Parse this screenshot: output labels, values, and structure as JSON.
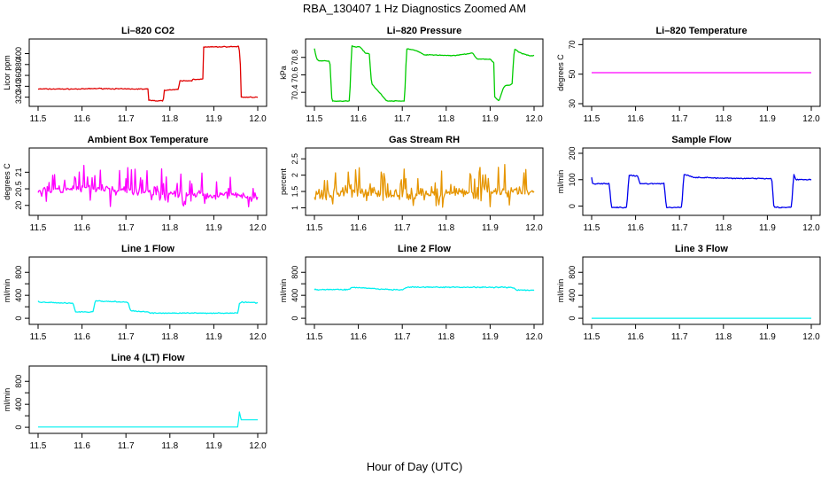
{
  "figure": {
    "title": "RBA_130407  1 Hz Diagnostics Zoomed AM",
    "xlabel": "Hour of Day (UTC)"
  },
  "colors": {
    "red": "#e00000",
    "green": "#00cc00",
    "magenta": "#ff00ff",
    "orange": "#e69500",
    "blue": "#0000ee",
    "cyan": "#00f0f0",
    "axis": "#000000"
  },
  "chart_data": [
    {
      "type": "line",
      "title": "Li–820 CO2",
      "ylabel": "Licor ppm",
      "xlim": [
        11.5,
        12.0
      ],
      "ylim": [
        308,
        422
      ],
      "xticks": [
        "11.5",
        "11.6",
        "11.7",
        "11.8",
        "11.9",
        "12.0"
      ],
      "yticks": [
        320,
        340,
        360,
        380,
        400
      ],
      "color": "red",
      "noise": 1.2,
      "series": [
        {
          "name": "CO2",
          "x": [
            11.5,
            11.6,
            11.635,
            11.7,
            11.75,
            11.752,
            11.785,
            11.787,
            11.82,
            11.822,
            11.85,
            11.852,
            11.875,
            11.877,
            11.955,
            11.957,
            11.96,
            11.962,
            11.99,
            12.0
          ],
          "y": [
            335,
            335,
            336,
            335,
            335,
            314,
            313,
            333,
            334,
            350,
            350,
            353,
            353,
            412,
            413,
            413,
            395,
            320,
            320,
            320
          ]
        }
      ]
    },
    {
      "type": "line",
      "title": "Li–820 Pressure",
      "ylabel": "kPa",
      "xlim": [
        11.5,
        12.0
      ],
      "ylim": [
        70.27,
        70.98
      ],
      "xticks": [
        "11.5",
        "11.6",
        "11.7",
        "11.8",
        "11.9",
        "12.0"
      ],
      "yticks": [
        70.4,
        70.6,
        70.8
      ],
      "color": "green",
      "noise": 0.006,
      "series": [
        {
          "name": "Pressure",
          "x": [
            11.5,
            11.505,
            11.51,
            11.535,
            11.54,
            11.58,
            11.585,
            11.595,
            11.605,
            11.615,
            11.625,
            11.63,
            11.665,
            11.675,
            11.705,
            11.71,
            11.73,
            11.75,
            11.82,
            11.86,
            11.87,
            11.9,
            11.91,
            11.91,
            11.92,
            11.93,
            11.935,
            11.945,
            11.95,
            11.955,
            11.965,
            11.97,
            11.99,
            12.0
          ],
          "y": [
            70.9,
            70.78,
            70.76,
            70.76,
            70.3,
            70.3,
            70.93,
            70.92,
            70.92,
            70.85,
            70.84,
            70.5,
            70.3,
            70.3,
            70.3,
            70.9,
            70.88,
            70.83,
            70.82,
            70.85,
            70.78,
            70.78,
            70.73,
            70.35,
            70.3,
            70.45,
            70.48,
            70.48,
            70.5,
            70.9,
            70.86,
            70.85,
            70.82,
            70.82
          ]
        }
      ]
    },
    {
      "type": "line",
      "title": "Li–820 Temperature",
      "ylabel": "degrees C",
      "xlim": [
        11.5,
        12.0
      ],
      "ylim": [
        30,
        72
      ],
      "xticks": [
        "11.5",
        "11.6",
        "11.7",
        "11.8",
        "11.9",
        "12.0"
      ],
      "yticks": [
        30,
        50,
        70
      ],
      "color": "magenta",
      "noise": 0,
      "series": [
        {
          "name": "Temperature",
          "x": [
            11.5,
            12.0
          ],
          "y": [
            51,
            51
          ]
        }
      ]
    },
    {
      "type": "line",
      "title": "Ambient Box Temperature",
      "ylabel": "degrees C",
      "xlim": [
        11.5,
        12.0
      ],
      "ylim": [
        19.78,
        21.65
      ],
      "xticks": [
        "11.5",
        "11.6",
        "11.7",
        "11.8",
        "11.9",
        "12.0"
      ],
      "yticks": [
        20.0,
        20.5,
        21.0
      ],
      "color": "magenta",
      "noise": 0.18,
      "spikes": 0.55,
      "series": [
        {
          "name": "Box Temperature",
          "x": [
            11.5,
            11.6,
            11.7,
            11.8,
            11.9,
            12.0
          ],
          "y": [
            20.45,
            20.5,
            20.45,
            20.35,
            20.3,
            20.25
          ]
        }
      ]
    },
    {
      "type": "line",
      "title": "Gas Stream RH",
      "ylabel": "percent",
      "xlim": [
        11.5,
        12.0
      ],
      "ylim": [
        0.85,
        2.75
      ],
      "xticks": [
        "11.5",
        "11.6",
        "11.7",
        "11.8",
        "11.9",
        "12.0"
      ],
      "yticks": [
        1.0,
        1.5,
        2.0,
        2.5
      ],
      "color": "orange",
      "noise": 0.25,
      "spikes": 0.6,
      "series": [
        {
          "name": "RH",
          "x": [
            11.5,
            11.6,
            11.7,
            11.8,
            11.9,
            12.0
          ],
          "y": [
            1.4,
            1.5,
            1.4,
            1.45,
            1.5,
            1.5
          ]
        }
      ]
    },
    {
      "type": "line",
      "title": "Sample Flow",
      "ylabel": "ml/min",
      "xlim": [
        11.5,
        12.0
      ],
      "ylim": [
        -25,
        210
      ],
      "xticks": [
        "11.5",
        "11.6",
        "11.7",
        "11.8",
        "11.9",
        "12.0"
      ],
      "yticks": [
        0,
        100,
        200
      ],
      "color": "blue",
      "noise": 3.5,
      "series": [
        {
          "name": "Sample Flow",
          "x": [
            11.5,
            11.502,
            11.54,
            11.545,
            11.58,
            11.585,
            11.605,
            11.61,
            11.665,
            11.67,
            11.705,
            11.71,
            11.73,
            11.8,
            11.91,
            11.915,
            11.955,
            11.96,
            11.965,
            12.0
          ],
          "y": [
            110,
            85,
            85,
            -5,
            -5,
            115,
            115,
            85,
            85,
            -5,
            -5,
            120,
            110,
            105,
            105,
            -5,
            -5,
            120,
            100,
            100
          ]
        }
      ]
    },
    {
      "type": "line",
      "title": "Line 1 Flow",
      "ylabel": "ml/min",
      "xlim": [
        11.5,
        12.0
      ],
      "ylim": [
        -60,
        1020
      ],
      "xticks": [
        "11.5",
        "11.6",
        "11.7",
        "11.8",
        "11.9",
        "12.0"
      ],
      "yticks": [
        0,
        400,
        800
      ],
      "yticks_minor": [
        200,
        600
      ],
      "color": "cyan",
      "noise": 12,
      "series": [
        {
          "name": "Line 1",
          "x": [
            11.5,
            11.502,
            11.58,
            11.585,
            11.625,
            11.63,
            11.705,
            11.71,
            11.75,
            11.755,
            11.955,
            11.958,
            11.962,
            12.0
          ],
          "y": [
            300,
            280,
            260,
            110,
            110,
            300,
            280,
            130,
            110,
            90,
            90,
            250,
            280,
            270
          ]
        }
      ]
    },
    {
      "type": "line",
      "title": "Line 2 Flow",
      "ylabel": "ml/min",
      "xlim": [
        11.5,
        12.0
      ],
      "ylim": [
        -60,
        1020
      ],
      "xticks": [
        "11.5",
        "11.6",
        "11.7",
        "11.8",
        "11.9",
        "12.0"
      ],
      "yticks": [
        0,
        400,
        800
      ],
      "yticks_minor": [
        200,
        600
      ],
      "color": "cyan",
      "noise": 14,
      "series": [
        {
          "name": "Line 2",
          "x": [
            11.5,
            11.58,
            11.585,
            11.63,
            11.64,
            11.7,
            11.71,
            11.9,
            11.95,
            11.96,
            12.0
          ],
          "y": [
            500,
            500,
            540,
            520,
            510,
            490,
            540,
            540,
            540,
            490,
            490
          ]
        }
      ]
    },
    {
      "type": "line",
      "title": "Line 3 Flow",
      "ylabel": "ml/min",
      "xlim": [
        11.5,
        12.0
      ],
      "ylim": [
        -60,
        1020
      ],
      "xticks": [
        "11.5",
        "11.6",
        "11.7",
        "11.8",
        "11.9",
        "12.0"
      ],
      "yticks": [
        0,
        400,
        800
      ],
      "yticks_minor": [
        200,
        600
      ],
      "color": "cyan",
      "noise": 0,
      "series": [
        {
          "name": "Line 3",
          "x": [
            11.5,
            12.0
          ],
          "y": [
            0,
            0
          ]
        }
      ]
    },
    {
      "type": "line",
      "title": "Line 4 (LT) Flow",
      "ylabel": "ml/min",
      "xlim": [
        11.5,
        12.0
      ],
      "ylim": [
        -60,
        1020
      ],
      "xticks": [
        "11.5",
        "11.6",
        "11.7",
        "11.8",
        "11.9",
        "12.0"
      ],
      "yticks": [
        0,
        400,
        800
      ],
      "yticks_minor": [
        200,
        600
      ],
      "color": "cyan",
      "noise": 0,
      "series": [
        {
          "name": "Line 4 (LT)",
          "x": [
            11.5,
            11.955,
            11.958,
            11.962,
            11.97,
            12.0
          ],
          "y": [
            5,
            5,
            280,
            130,
            130,
            130
          ]
        }
      ]
    }
  ]
}
